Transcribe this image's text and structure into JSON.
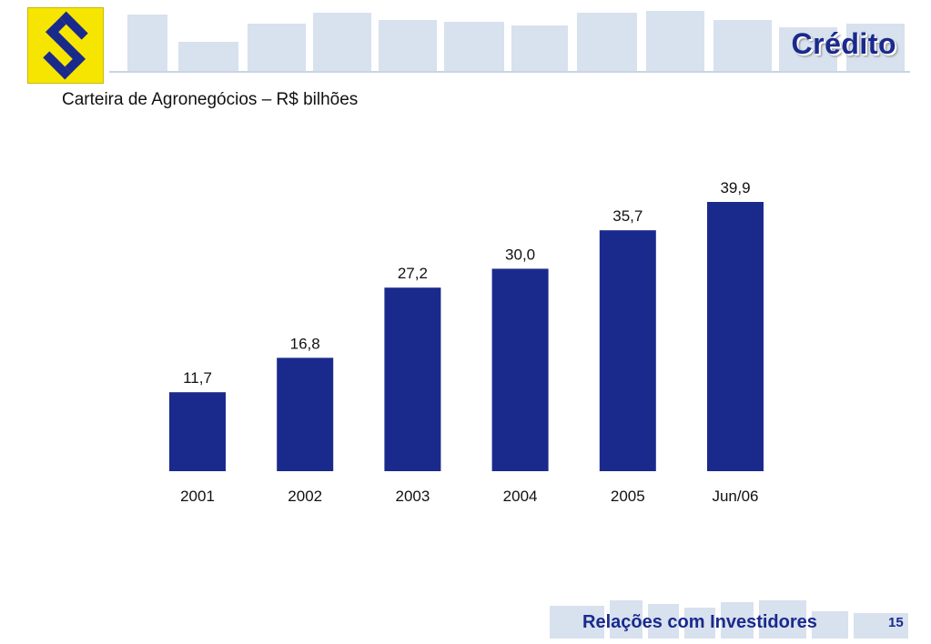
{
  "header": {
    "section_title": "Crédito",
    "logo_icon": "banco-do-brasil-logo-icon"
  },
  "colors": {
    "bar": "#1a2a8c",
    "brand_yellow": "#f6e500",
    "brand_blue": "#1a2a8c",
    "header_band": "#d8e1ee"
  },
  "chart_data": {
    "type": "bar",
    "title": "Carteira de Agronegócios – R$ bilhões",
    "xlabel": "",
    "ylabel": "",
    "categories": [
      "2001",
      "2002",
      "2003",
      "2004",
      "2005",
      "Jun/06"
    ],
    "values": [
      11.7,
      16.8,
      27.2,
      30.0,
      35.7,
      39.9
    ],
    "value_labels": [
      "11,7",
      "16,8",
      "27,2",
      "30,0",
      "35,7",
      "39,9"
    ],
    "ylim": [
      0,
      39.9
    ],
    "grid": false,
    "legend": "none"
  },
  "footer": {
    "label": "Relações com Investidores",
    "page_number": "15"
  }
}
